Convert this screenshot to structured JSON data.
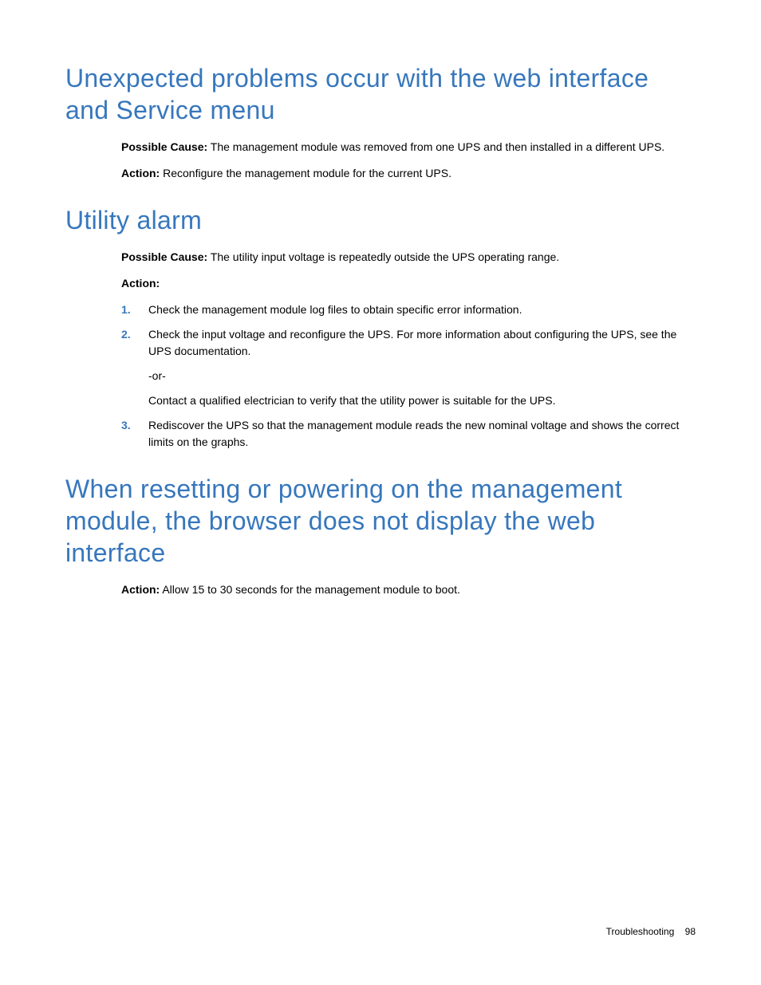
{
  "colors": {
    "heading_color": "#3777bc",
    "body_text_color": "#000000",
    "background_color": "#ffffff",
    "list_marker_color": "#3777bc"
  },
  "typography": {
    "heading_fontsize": 32,
    "heading_weight": 300,
    "body_fontsize": 14,
    "bold_weight": "bold",
    "footer_fontsize": 12
  },
  "section1": {
    "heading": "Unexpected problems occur with the web interface and Service menu",
    "cause_label": "Possible Cause:",
    "cause_text": " The management module was removed from one UPS and then installed in a different UPS.",
    "action_label": "Action:",
    "action_text": " Reconfigure the management module for the current UPS."
  },
  "section2": {
    "heading": "Utility alarm",
    "cause_label": "Possible Cause:",
    "cause_text": " The utility input voltage is repeatedly outside the UPS operating range.",
    "action_label": "Action:",
    "items": [
      {
        "marker": "1.",
        "text": "Check the management module log files to obtain specific error information."
      },
      {
        "marker": "2.",
        "text": "Check the input voltage and reconfigure the UPS. For more information about configuring the UPS, see the UPS documentation.",
        "sub1": "-or-",
        "sub2": "Contact a qualified electrician to verify that the utility power is suitable for the UPS."
      },
      {
        "marker": "3.",
        "text": "Rediscover the UPS so that the management module reads the new nominal voltage and shows the correct limits on the graphs."
      }
    ]
  },
  "section3": {
    "heading": "When resetting or powering on the management module, the browser does not display the web interface",
    "action_label": "Action:",
    "action_text": "  Allow 15 to 30 seconds for the management module to boot."
  },
  "footer": {
    "section_name": "Troubleshooting",
    "page_number": "98"
  }
}
